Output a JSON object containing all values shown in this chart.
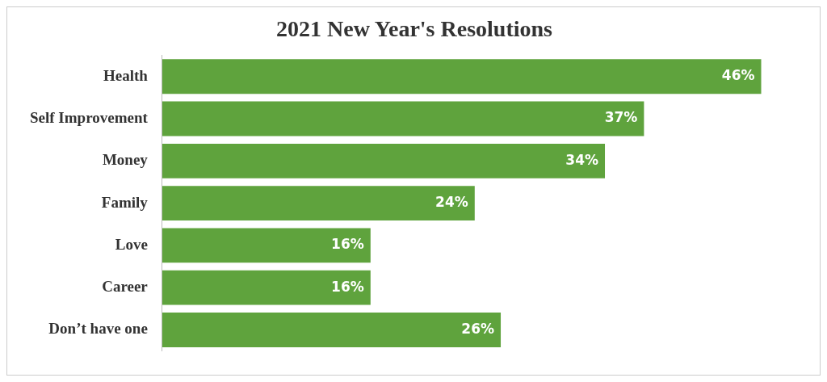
{
  "chart_data": {
    "type": "bar",
    "title": "2021 New Year's Resolutions",
    "orientation": "horizontal",
    "categories": [
      "Health",
      "Self Improvement",
      "Money",
      "Family",
      "Love",
      "Career",
      "Don’t have one"
    ],
    "values": [
      46,
      37,
      34,
      24,
      16,
      16,
      26
    ],
    "value_labels": [
      "46%",
      "37%",
      "34%",
      "24%",
      "16%",
      "16%",
      "26%"
    ],
    "color": "#5fa33d",
    "grid": false,
    "legend": false
  }
}
